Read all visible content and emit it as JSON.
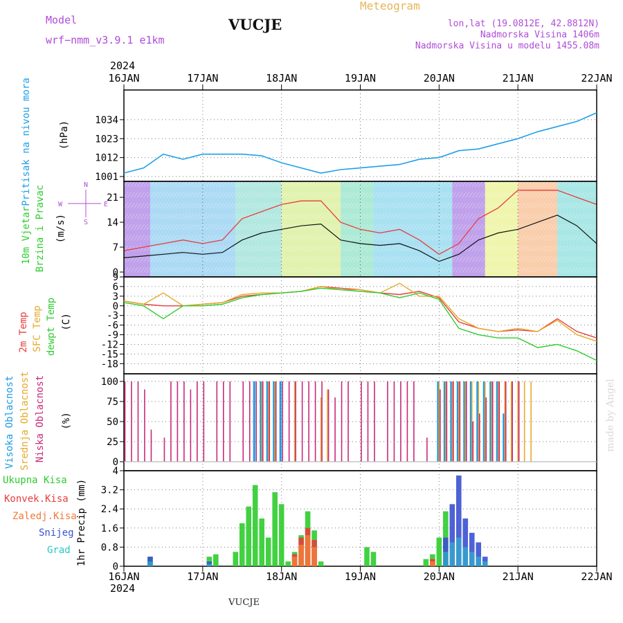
{
  "header": {
    "model_label": "Model",
    "model_name": "wrf−nmm_v3.9.1  e1km",
    "station": "VUCJE",
    "title": "Meteogram",
    "coords": "lon,lat (19.0812E, 42.8812N)",
    "elevation": "Nadmorska Visina 1406m",
    "model_elevation": "Nadmorska Visina u modelu 1455.08m",
    "credit": "made by Angel",
    "footer_station": "VUCJE"
  },
  "colors": {
    "pressure": "#1ea0e6",
    "temp2m": "#e83c3c",
    "sfc": "#e6a82a",
    "dewpt": "#2ecc2e",
    "high_cloud": "#1e9be6",
    "mid_cloud": "#e6a82a",
    "low_cloud": "#c8287a",
    "precip_total": "#2ecc2e",
    "precip_conv": "#e83c3c",
    "precip_frz": "#f07a3a",
    "precip_snow": "#3c50d2",
    "precip_grad": "#28c8c8",
    "model_label": "#b04cd8",
    "title": "#e6b45a"
  },
  "chart_data": [
    {
      "id": "pressure",
      "type": "line",
      "ylabel": "Pritisak na nivou mora",
      "unit": "(hPa)",
      "yticks": [
        1001,
        1012,
        1023,
        1034
      ],
      "ylim": [
        1001,
        1044
      ],
      "xticks": [
        "16JAN",
        "17JAN",
        "18JAN",
        "19JAN",
        "20JAN",
        "21JAN",
        "22JAN"
      ],
      "x_year": "2024",
      "x_hours": [
        0,
        6,
        12,
        18,
        24,
        30,
        36,
        42,
        48,
        54,
        60,
        66,
        72,
        78,
        84,
        90,
        96,
        102,
        108,
        114,
        120,
        126,
        132,
        138,
        144
      ],
      "series": [
        {
          "values": [
            1003,
            1006,
            1014,
            1011,
            1014,
            1014,
            1014,
            1013,
            1009,
            1006,
            1003,
            1005,
            1006,
            1007,
            1008,
            1011,
            1012,
            1016,
            1017,
            1020,
            1023,
            1027,
            1030,
            1033,
            1038
          ]
        }
      ]
    },
    {
      "id": "wind",
      "type": "line",
      "ylabel": "10m Vjetar",
      "ylabel2": "Brzina i Pravac",
      "unit": "(m/s)",
      "yticks": [
        0,
        7,
        14,
        21
      ],
      "ylim": [
        0,
        26
      ],
      "compass": {
        "n": "N",
        "s": "S",
        "e": "E",
        "w": "W"
      },
      "xticks": [
        "16JAN",
        "17JAN",
        "18JAN",
        "19JAN",
        "20JAN",
        "21JAN",
        "22JAN"
      ],
      "x_hours": [
        0,
        6,
        12,
        18,
        24,
        30,
        36,
        42,
        48,
        54,
        60,
        66,
        72,
        78,
        84,
        90,
        96,
        102,
        108,
        114,
        120,
        126,
        132,
        138,
        144
      ],
      "series": [
        {
          "values": [
            4,
            4.5,
            5,
            5.5,
            5,
            5.5,
            9,
            11,
            12,
            13,
            13.5,
            9,
            8,
            7.5,
            8,
            6,
            3,
            5,
            9,
            11,
            12,
            14,
            16,
            13,
            8
          ]
        },
        {
          "values": [
            6,
            7,
            8,
            9,
            8,
            9,
            15,
            17,
            19,
            20,
            20,
            14,
            12,
            11,
            12,
            9,
            5,
            8,
            15,
            18,
            23,
            23,
            23,
            21,
            19
          ]
        }
      ]
    },
    {
      "id": "temperature",
      "type": "line",
      "ylabels": [
        "2m Temp",
        "SFC Temp",
        "dewpt Temp"
      ],
      "unit": "(C)",
      "yticks": [
        9,
        6,
        3,
        0,
        -3,
        -6,
        -9,
        -12,
        -15,
        -18
      ],
      "ylim": [
        -19,
        9
      ],
      "xticks": [
        "16JAN",
        "17JAN",
        "18JAN",
        "19JAN",
        "20JAN",
        "21JAN",
        "22JAN"
      ],
      "x_hours": [
        0,
        6,
        12,
        18,
        24,
        30,
        36,
        42,
        48,
        54,
        60,
        66,
        72,
        78,
        84,
        90,
        96,
        102,
        108,
        114,
        120,
        126,
        132,
        138,
        144
      ],
      "series": [
        {
          "name": "2m Temp",
          "values": [
            1.5,
            0.5,
            0,
            0,
            0.5,
            1,
            3,
            3.5,
            4,
            4.5,
            6,
            5.5,
            5,
            4,
            3.5,
            4.5,
            2.5,
            -5,
            -7,
            -8,
            -7.5,
            -8,
            -4,
            -8,
            -10
          ]
        },
        {
          "name": "SFC Temp",
          "values": [
            1.5,
            0.5,
            4,
            0,
            0.5,
            1,
            3.5,
            4,
            4,
            4.5,
            6,
            5,
            5,
            4,
            7,
            3,
            3,
            -4,
            -7,
            -8,
            -7,
            -8,
            -4.5,
            -9,
            -11
          ]
        },
        {
          "name": "dewpt Temp",
          "values": [
            1,
            0,
            -4,
            0,
            0,
            0.5,
            2.5,
            3.5,
            4,
            4.5,
            5.5,
            5,
            4.5,
            4,
            2.5,
            4,
            2,
            -7,
            -9,
            -10,
            -10,
            -13,
            -12,
            -14,
            -17
          ]
        }
      ]
    },
    {
      "id": "cloud",
      "type": "bar",
      "ylabels": [
        "Visoka Oblacnost",
        "Srednja Oblacnost",
        "Niska Oblacnost"
      ],
      "unit": "(%)",
      "yticks": [
        0,
        25,
        50,
        75,
        100
      ],
      "ylim": [
        0,
        100
      ],
      "xticks": [
        "16JAN",
        "17JAN",
        "18JAN",
        "19JAN",
        "20JAN",
        "21JAN",
        "22JAN"
      ],
      "x_hours": [
        0,
        2,
        4,
        6,
        8,
        10,
        12,
        14,
        16,
        18,
        20,
        22,
        24,
        26,
        28,
        30,
        32,
        34,
        36,
        38,
        40,
        42,
        44,
        46,
        48,
        50,
        52,
        54,
        56,
        58,
        60,
        62,
        64,
        66,
        68,
        70,
        72,
        74,
        76,
        78,
        80,
        82,
        84,
        86,
        88,
        90,
        92,
        94,
        96,
        98,
        100,
        102,
        104,
        106,
        108,
        110,
        112,
        114,
        116,
        118,
        120,
        122,
        124,
        126,
        128,
        130,
        132,
        134,
        136,
        138,
        140,
        142,
        144
      ],
      "series": [
        {
          "name": "Visoka Oblacnost",
          "values": [
            0,
            0,
            0,
            0,
            0,
            0,
            0,
            0,
            0,
            0,
            0,
            0,
            0,
            0,
            0,
            0,
            0,
            0,
            0,
            0,
            100,
            100,
            100,
            100,
            100,
            0,
            0,
            0,
            0,
            0,
            0,
            0,
            0,
            0,
            0,
            0,
            0,
            0,
            0,
            0,
            0,
            0,
            0,
            0,
            0,
            0,
            0,
            0,
            100,
            100,
            100,
            100,
            100,
            100,
            100,
            100,
            100,
            100,
            60,
            0,
            0,
            0,
            0,
            0,
            0,
            0,
            0,
            0,
            0,
            0,
            0,
            0,
            0
          ]
        },
        {
          "name": "Srednja Oblacnost",
          "values": [
            0,
            0,
            0,
            0,
            0,
            0,
            0,
            0,
            0,
            0,
            0,
            0,
            0,
            0,
            0,
            0,
            0,
            0,
            0,
            0,
            0,
            100,
            100,
            100,
            0,
            0,
            100,
            0,
            0,
            0,
            80,
            90,
            0,
            0,
            0,
            0,
            0,
            0,
            0,
            0,
            0,
            0,
            0,
            0,
            0,
            0,
            0,
            0,
            100,
            100,
            100,
            100,
            100,
            100,
            100,
            100,
            100,
            100,
            100,
            100,
            100,
            100,
            100,
            0,
            0,
            0,
            0,
            0,
            0,
            0,
            0,
            0,
            0
          ]
        },
        {
          "name": "Niska Oblacnost",
          "values": [
            100,
            100,
            100,
            90,
            40,
            0,
            30,
            100,
            100,
            100,
            90,
            100,
            100,
            0,
            100,
            100,
            100,
            0,
            100,
            100,
            100,
            100,
            100,
            100,
            100,
            100,
            100,
            100,
            100,
            100,
            100,
            90,
            80,
            100,
            100,
            0,
            100,
            100,
            100,
            0,
            100,
            100,
            100,
            100,
            100,
            0,
            30,
            0,
            90,
            100,
            100,
            100,
            100,
            50,
            60,
            80,
            100,
            100,
            100,
            100,
            100,
            0,
            0,
            0,
            0,
            0,
            0,
            0,
            0,
            0,
            0,
            0,
            0
          ]
        }
      ]
    },
    {
      "id": "precip",
      "type": "bar",
      "ylabel": "1hr Precip (mm)",
      "legend": [
        "Ukupna  Kisa",
        "Konvek.Kisa",
        "Zaledj.Kisa",
        "Snijeg",
        "Grad"
      ],
      "yticks": [
        0,
        0.8,
        1.6,
        2.4,
        3.2,
        4
      ],
      "ylim": [
        0,
        4
      ],
      "xticks": [
        "16JAN",
        "17JAN",
        "18JAN",
        "19JAN",
        "20JAN",
        "21JAN",
        "22JAN"
      ],
      "x_year": "2024",
      "x_hours": [
        0,
        2,
        4,
        6,
        8,
        10,
        12,
        14,
        16,
        18,
        20,
        22,
        24,
        26,
        28,
        30,
        32,
        34,
        36,
        38,
        40,
        42,
        44,
        46,
        48,
        50,
        52,
        54,
        56,
        58,
        60,
        62,
        64,
        66,
        68,
        70,
        72,
        74,
        76,
        78,
        80,
        82,
        84,
        86,
        88,
        90,
        92,
        94,
        96,
        98,
        100,
        102,
        104,
        106,
        108,
        110,
        112,
        114,
        116,
        118,
        120,
        122,
        124,
        126,
        128,
        130,
        132,
        134,
        136,
        138,
        140,
        142,
        144
      ],
      "series": [
        {
          "name": "Ukupna  Kisa",
          "values": [
            0,
            0,
            0,
            0,
            0.4,
            0,
            0,
            0,
            0,
            0,
            0,
            0,
            0,
            0.4,
            0.5,
            0,
            0,
            0.6,
            1.8,
            2.5,
            3.4,
            2.0,
            1.2,
            3.1,
            2.6,
            0.2,
            0.6,
            1.3,
            2.3,
            1.5,
            0.2,
            0,
            0,
            0,
            0,
            0,
            0,
            0.8,
            0.6,
            0,
            0,
            0,
            0,
            0,
            0,
            0,
            0.3,
            0.5,
            1.2,
            2.3,
            0,
            0,
            0,
            0,
            0,
            0,
            0,
            0,
            0,
            0,
            0,
            0,
            0,
            0,
            0,
            0,
            0,
            0,
            0,
            0,
            0,
            0,
            0
          ]
        },
        {
          "name": "Konvek.Kisa",
          "values": [
            0,
            0,
            0,
            0,
            0,
            0,
            0,
            0,
            0,
            0,
            0,
            0,
            0,
            0,
            0,
            0,
            0,
            0,
            0,
            0,
            0,
            0,
            0,
            0,
            0,
            0,
            0.5,
            1.2,
            1.6,
            1.1,
            0,
            0,
            0,
            0,
            0,
            0,
            0,
            0,
            0,
            0,
            0,
            0,
            0,
            0,
            0,
            0,
            0,
            0.3,
            0,
            0,
            0,
            0,
            0,
            0,
            0,
            0,
            0,
            0,
            0,
            0,
            0,
            0,
            0,
            0,
            0,
            0,
            0,
            0,
            0,
            0,
            0,
            0,
            0
          ]
        },
        {
          "name": "Zaledj.Kisa",
          "values": [
            0,
            0,
            0,
            0,
            0,
            0,
            0,
            0,
            0,
            0,
            0,
            0,
            0,
            0,
            0,
            0,
            0,
            0,
            0,
            0,
            0,
            0,
            0,
            0,
            0,
            0,
            0.4,
            0.9,
            1.3,
            0.8,
            0,
            0,
            0,
            0,
            0,
            0,
            0,
            0,
            0,
            0,
            0,
            0,
            0,
            0,
            0,
            0,
            0,
            0.2,
            0,
            0,
            0,
            0,
            0,
            0,
            0,
            0,
            0,
            0,
            0,
            0,
            0,
            0,
            0,
            0,
            0,
            0,
            0,
            0,
            0,
            0,
            0,
            0,
            0
          ]
        },
        {
          "name": "Snijeg",
          "values": [
            0,
            0,
            0,
            0,
            0.4,
            0,
            0,
            0,
            0,
            0,
            0,
            0,
            0,
            0.2,
            0,
            0,
            0,
            0,
            0,
            0,
            0,
            0,
            0,
            0,
            0,
            0,
            0,
            0,
            0,
            0,
            0,
            0,
            0,
            0,
            0,
            0,
            0,
            0,
            0,
            0,
            0,
            0,
            0,
            0,
            0,
            0,
            0,
            0,
            0,
            1.2,
            2.6,
            3.8,
            2.0,
            1.4,
            1.0,
            0.4,
            0,
            0,
            0,
            0,
            0,
            0,
            0,
            0,
            0,
            0,
            0,
            0,
            0,
            0,
            0,
            0,
            0
          ]
        },
        {
          "name": "Grad",
          "values": [
            0,
            0,
            0,
            0,
            0.2,
            0,
            0,
            0,
            0,
            0,
            0,
            0,
            0,
            0.1,
            0,
            0,
            0,
            0,
            0,
            0,
            0,
            0,
            0,
            0,
            0,
            0,
            0,
            0,
            0,
            0,
            0,
            0,
            0,
            0,
            0,
            0,
            0,
            0,
            0,
            0,
            0,
            0,
            0,
            0,
            0,
            0,
            0,
            0,
            0,
            0.6,
            1.0,
            1.2,
            0.8,
            0.6,
            0.4,
            0.2,
            0,
            0,
            0,
            0,
            0,
            0,
            0,
            0,
            0,
            0,
            0,
            0,
            0,
            0,
            0,
            0,
            0
          ]
        }
      ]
    }
  ]
}
